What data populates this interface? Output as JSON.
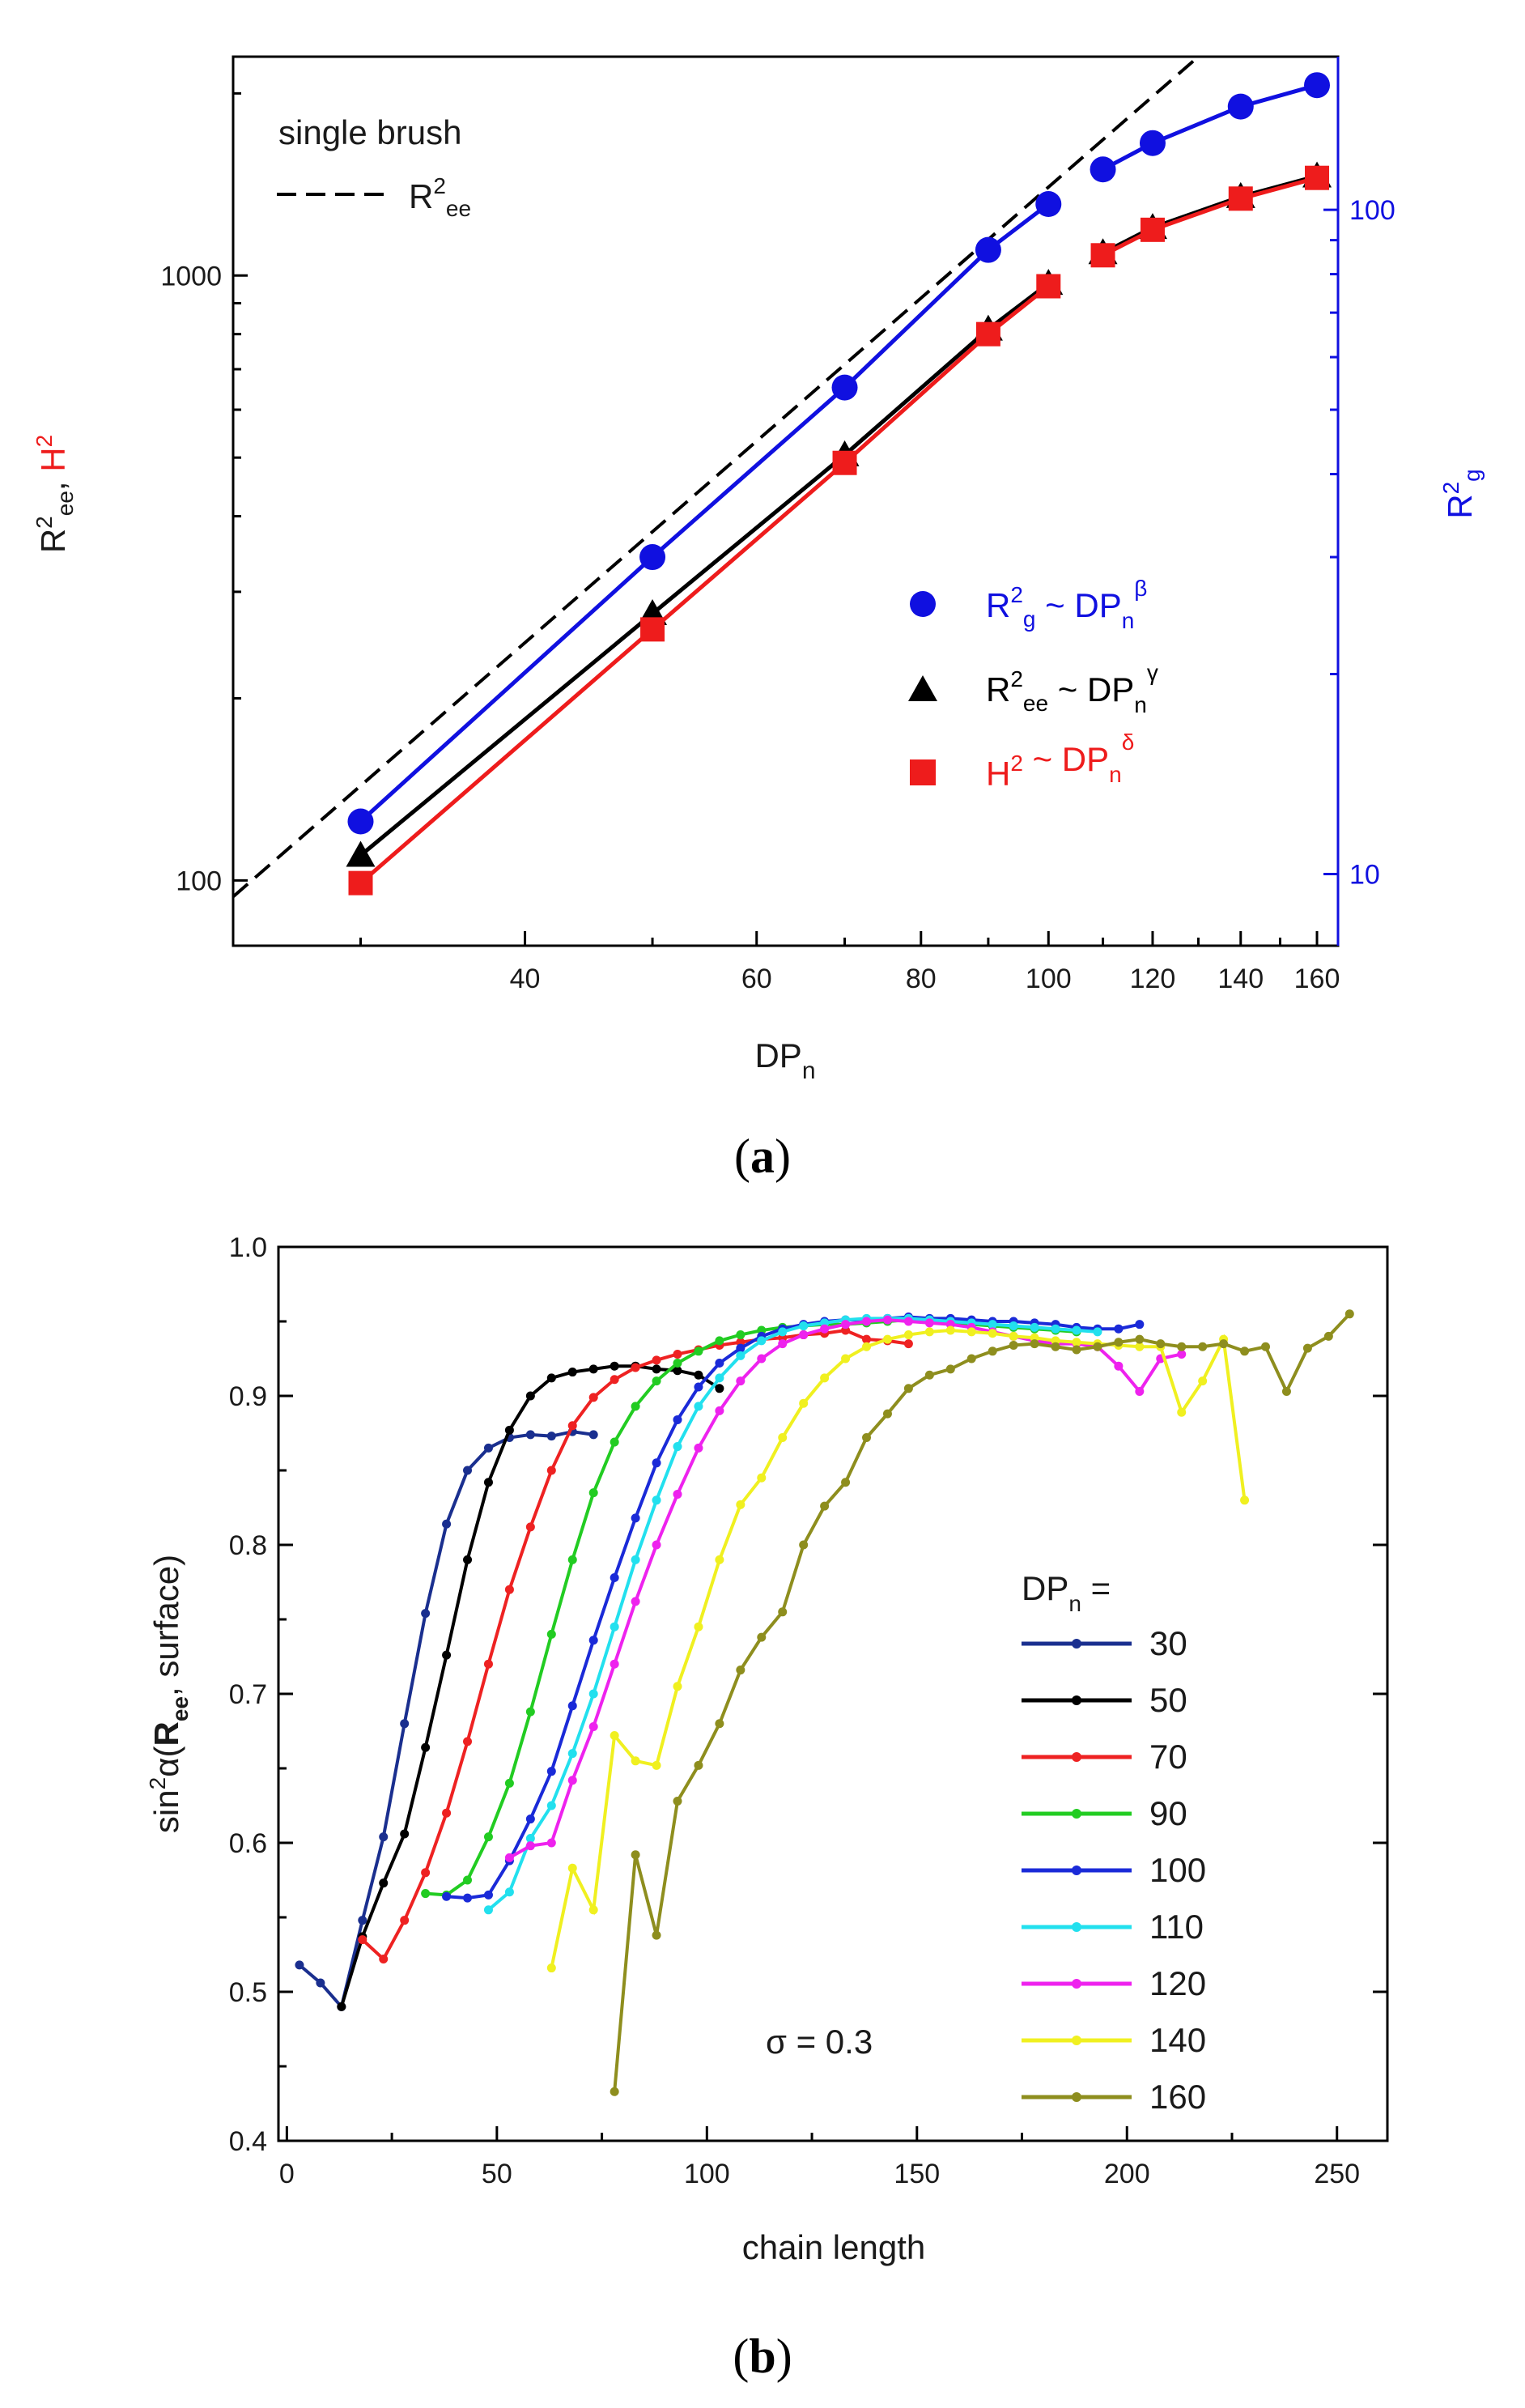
{
  "colors": {
    "red": "#ee1c1c",
    "blue": "#1010e0",
    "black": "#000000"
  },
  "chart_data": [
    {
      "type": "line",
      "panel_label": "a",
      "caption_letter": "a",
      "xlabel": "DP",
      "xlabel_sub": "n",
      "ylabel_left": {
        "r": "R",
        "sup": "2",
        "sub": "ee",
        "comma": ", ",
        "h": "H",
        "hsup": "2"
      },
      "ylabel_right": {
        "r": "R",
        "sup": "2",
        "sub": "g"
      },
      "xscale": "log",
      "yscale": "log",
      "xlim": [
        24,
        166
      ],
      "ylim_left": [
        78,
        2300
      ],
      "ylim_right": [
        7.8,
        170
      ],
      "xticks": [
        40,
        60,
        80,
        100,
        120,
        140,
        160
      ],
      "yticks_left": [
        100,
        1000
      ],
      "yticks_right": [
        10,
        100
      ],
      "annotation_title": "single brush",
      "annotation_line": {
        "r": "R",
        "sup": "2",
        "sub": "ee"
      },
      "legend": [
        {
          "name": "Rg",
          "color": "#1010e0",
          "marker": "circle",
          "base": "R",
          "sup": "2",
          "sub": "g",
          "mid": " ~ DP",
          "nsub": "n",
          "exp": "β"
        },
        {
          "name": "Ree",
          "color": "#000000",
          "marker": "triangle",
          "base": "R",
          "sup": "2",
          "sub": "ee",
          "mid": " ~ DP",
          "nsub": "n",
          "exp": "γ"
        },
        {
          "name": "H",
          "color": "#ee1c1c",
          "marker": "square",
          "base": "H",
          "sup": "2",
          "sub": "",
          "mid": " ~ DP",
          "nsub": "n",
          "exp": "δ"
        }
      ],
      "x": [
        30,
        50,
        70,
        90,
        100,
        110,
        120,
        140,
        160
      ],
      "series": [
        {
          "name": "Rg",
          "axis": "right",
          "color": "#1010e0",
          "marker": "circle",
          "values": [
            12,
            30,
            54,
            87,
            102,
            115,
            126,
            143,
            154
          ]
        },
        {
          "name": "Ree",
          "axis": "left",
          "color": "#000000",
          "marker": "triangle",
          "values": [
            110,
            276,
            505,
            815,
            970,
            1090,
            1200,
            1350,
            1460
          ]
        },
        {
          "name": "H2",
          "axis": "left",
          "color": "#ee1c1c",
          "marker": "square",
          "values": [
            99,
            260,
            490,
            800,
            960,
            1080,
            1190,
            1340,
            1450
          ]
        }
      ],
      "reference_line": {
        "name": "single brush Ree",
        "style": "dashed",
        "x": [
          24,
          130
        ],
        "values": [
          94,
          2300
        ]
      }
    },
    {
      "type": "line",
      "panel_label": "b",
      "caption_letter": "b",
      "xlabel": "chain length",
      "ylabel": {
        "pre": "sin",
        "sup": "2",
        "alpha": "α(",
        "bold": "R",
        "bsub": "ee",
        "post": ", surface)"
      },
      "xlim": [
        -2,
        262
      ],
      "ylim": [
        0.4,
        1.0
      ],
      "xticks": [
        0,
        50,
        100,
        150,
        200,
        250
      ],
      "yticks": [
        0.4,
        0.5,
        0.6,
        0.7,
        0.8,
        0.9,
        1.0
      ],
      "annotation": "σ = 0.3",
      "legend_title": {
        "base": "DP",
        "sub": "n",
        "post": " ="
      },
      "series": [
        {
          "name": "30",
          "color": "#1a2f8f",
          "start": 3,
          "step": 5,
          "values": [
            0.518,
            0.506,
            0.49,
            0.548,
            0.604,
            0.68,
            0.754,
            0.814,
            0.85,
            0.865,
            0.872,
            0.874,
            0.873,
            0.876,
            0.874
          ]
        },
        {
          "name": "50",
          "color": "#000000",
          "start": 13,
          "step": 5,
          "values": [
            0.49,
            0.537,
            0.573,
            0.606,
            0.664,
            0.726,
            0.79,
            0.842,
            0.877,
            0.9,
            0.912,
            0.916,
            0.918,
            0.92,
            0.92,
            0.918,
            0.917,
            0.914,
            0.905
          ]
        },
        {
          "name": "70",
          "color": "#ee2222",
          "start": 18,
          "step": 5,
          "values": [
            0.535,
            0.522,
            0.548,
            0.58,
            0.62,
            0.668,
            0.72,
            0.77,
            0.812,
            0.85,
            0.88,
            0.899,
            0.911,
            0.919,
            0.924,
            0.928,
            0.931,
            0.934,
            0.936,
            0.938,
            0.939,
            0.941,
            0.942,
            0.944,
            0.938,
            0.937,
            0.935
          ]
        },
        {
          "name": "90",
          "color": "#22cc22",
          "start": 33,
          "step": 5,
          "values": [
            0.566,
            0.565,
            0.575,
            0.604,
            0.64,
            0.688,
            0.74,
            0.79,
            0.835,
            0.869,
            0.893,
            0.91,
            0.922,
            0.93,
            0.937,
            0.941,
            0.944,
            0.946,
            0.947,
            0.948,
            0.948,
            0.949,
            0.95,
            0.951,
            0.95,
            0.949,
            0.948,
            0.947,
            0.946,
            0.945,
            0.944,
            0.943
          ]
        },
        {
          "name": "100",
          "color": "#1a2ad8",
          "start": 38,
          "step": 5,
          "values": [
            0.564,
            0.563,
            0.565,
            0.588,
            0.616,
            0.648,
            0.692,
            0.736,
            0.778,
            0.818,
            0.855,
            0.884,
            0.906,
            0.922,
            0.932,
            0.94,
            0.945,
            0.948,
            0.95,
            0.951,
            0.951,
            0.952,
            0.953,
            0.952,
            0.952,
            0.951,
            0.95,
            0.95,
            0.949,
            0.948,
            0.946,
            0.945,
            0.945,
            0.948
          ]
        },
        {
          "name": "110",
          "color": "#22e0ee",
          "start": 48,
          "step": 5,
          "values": [
            0.555,
            0.567,
            0.603,
            0.625,
            0.66,
            0.7,
            0.745,
            0.79,
            0.83,
            0.866,
            0.893,
            0.912,
            0.927,
            0.937,
            0.943,
            0.947,
            0.949,
            0.951,
            0.952,
            0.952,
            0.952,
            0.951,
            0.95,
            0.949,
            0.948,
            0.947,
            0.946,
            0.945,
            0.944,
            0.943
          ]
        },
        {
          "name": "120",
          "color": "#ee22ee",
          "start": 53,
          "step": 5,
          "values": [
            0.59,
            0.598,
            0.6,
            0.642,
            0.678,
            0.72,
            0.762,
            0.8,
            0.834,
            0.865,
            0.89,
            0.91,
            0.925,
            0.935,
            0.941,
            0.945,
            0.948,
            0.95,
            0.951,
            0.95,
            0.949,
            0.948,
            0.946,
            0.943,
            0.94,
            0.937,
            0.935,
            0.935,
            0.933,
            0.92,
            0.903,
            0.925,
            0.928
          ]
        },
        {
          "name": "140",
          "color": "#f0f020",
          "start": 63,
          "step": 5,
          "values": [
            0.516,
            0.583,
            0.555,
            0.672,
            0.655,
            0.652,
            0.705,
            0.745,
            0.79,
            0.827,
            0.845,
            0.872,
            0.895,
            0.912,
            0.925,
            0.933,
            0.938,
            0.941,
            0.943,
            0.944,
            0.943,
            0.942,
            0.94,
            0.939,
            0.937,
            0.936,
            0.935,
            0.934,
            0.933,
            0.933,
            0.889,
            0.91,
            0.938,
            0.83
          ]
        },
        {
          "name": "160",
          "color": "#8e8e1e",
          "start": 78,
          "step": 5,
          "values": [
            0.433,
            0.592,
            0.538,
            0.628,
            0.652,
            0.68,
            0.716,
            0.738,
            0.755,
            0.8,
            0.826,
            0.842,
            0.872,
            0.888,
            0.905,
            0.914,
            0.918,
            0.925,
            0.93,
            0.934,
            0.935,
            0.933,
            0.931,
            0.933,
            0.936,
            0.938,
            0.935,
            0.933,
            0.933,
            0.935,
            0.93,
            0.933,
            0.903,
            0.932,
            0.94,
            0.955
          ]
        }
      ]
    }
  ]
}
